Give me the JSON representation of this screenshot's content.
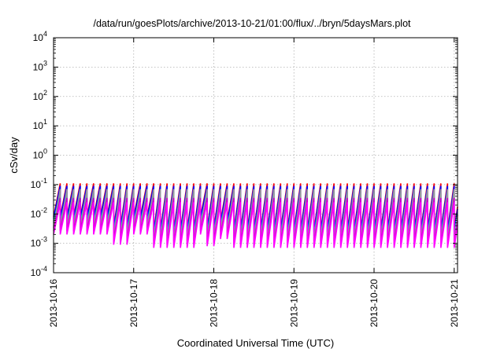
{
  "chart_data": {
    "type": "line",
    "title": "/data/run/goesPlots/archive/2013-10-21/01:00/flux/../bryn/5daysMars.plot",
    "xlabel": "Coordinated Universal Time (UTC)",
    "ylabel": "cSv/day",
    "yscale": "log",
    "ylim": [
      0.0001,
      10000
    ],
    "xlim": [
      "2013-10-16",
      "2013-10-21 01:00"
    ],
    "grid": true,
    "legend": "none",
    "x_tick_labels": [
      "2013-10-16",
      "2013-10-17",
      "2013-10-18",
      "2013-10-19",
      "2013-10-20",
      "2013-10-21"
    ],
    "y_ticks": [
      {
        "value": 0.0001,
        "base": "10",
        "exp": "-4"
      },
      {
        "value": 0.001,
        "base": "10",
        "exp": "-3"
      },
      {
        "value": 0.01,
        "base": "10",
        "exp": "-2"
      },
      {
        "value": 0.1,
        "base": "10",
        "exp": "-1"
      },
      {
        "value": 1,
        "base": "10",
        "exp": "0"
      },
      {
        "value": 10,
        "base": "10",
        "exp": "1"
      },
      {
        "value": 100,
        "base": "10",
        "exp": "2"
      },
      {
        "value": 1000,
        "base": "10",
        "exp": "3"
      },
      {
        "value": 10000,
        "base": "10",
        "exp": "4"
      }
    ],
    "sawtooth": {
      "period_hours": 2.0,
      "segments": [
        {
          "start": "2013-10-16 00:00",
          "end": "2013-10-16 18:00",
          "min_level": 0.002
        },
        {
          "start": "2013-10-16 18:00",
          "end": "2013-10-17 00:00",
          "min_level": 0.0009
        },
        {
          "start": "2013-10-17 00:00",
          "end": "2013-10-17 06:00",
          "min_level": 0.002
        },
        {
          "start": "2013-10-17 06:00",
          "end": "2013-10-17 20:00",
          "min_level": 0.0007
        },
        {
          "start": "2013-10-17 20:00",
          "end": "2013-10-17 22:00",
          "min_level": 0.002
        },
        {
          "start": "2013-10-17 22:00",
          "end": "2013-10-18 02:00",
          "min_level": 0.0008
        },
        {
          "start": "2013-10-18 02:00",
          "end": "2013-10-18 05:00",
          "min_level": 0.0014
        },
        {
          "start": "2013-10-18 05:00",
          "end": "2013-10-21 01:00",
          "min_level": 0.0007
        }
      ]
    },
    "series": [
      {
        "color": "#ff0000",
        "peak": 0.11,
        "floor_factor": 4.0
      },
      {
        "color": "#0000ff",
        "peak": 0.09,
        "floor_factor": 3.5
      },
      {
        "color": "#00cccc",
        "peak": 0.05,
        "floor_factor": 2.6
      },
      {
        "color": "#999999",
        "peak": 0.07,
        "floor_factor": 1.7
      },
      {
        "color": "#cc00cc",
        "peak": 0.035,
        "floor_factor": 1.3
      },
      {
        "color": "#ff00ff",
        "peak": 0.025,
        "floor_factor": 1.0
      }
    ]
  }
}
